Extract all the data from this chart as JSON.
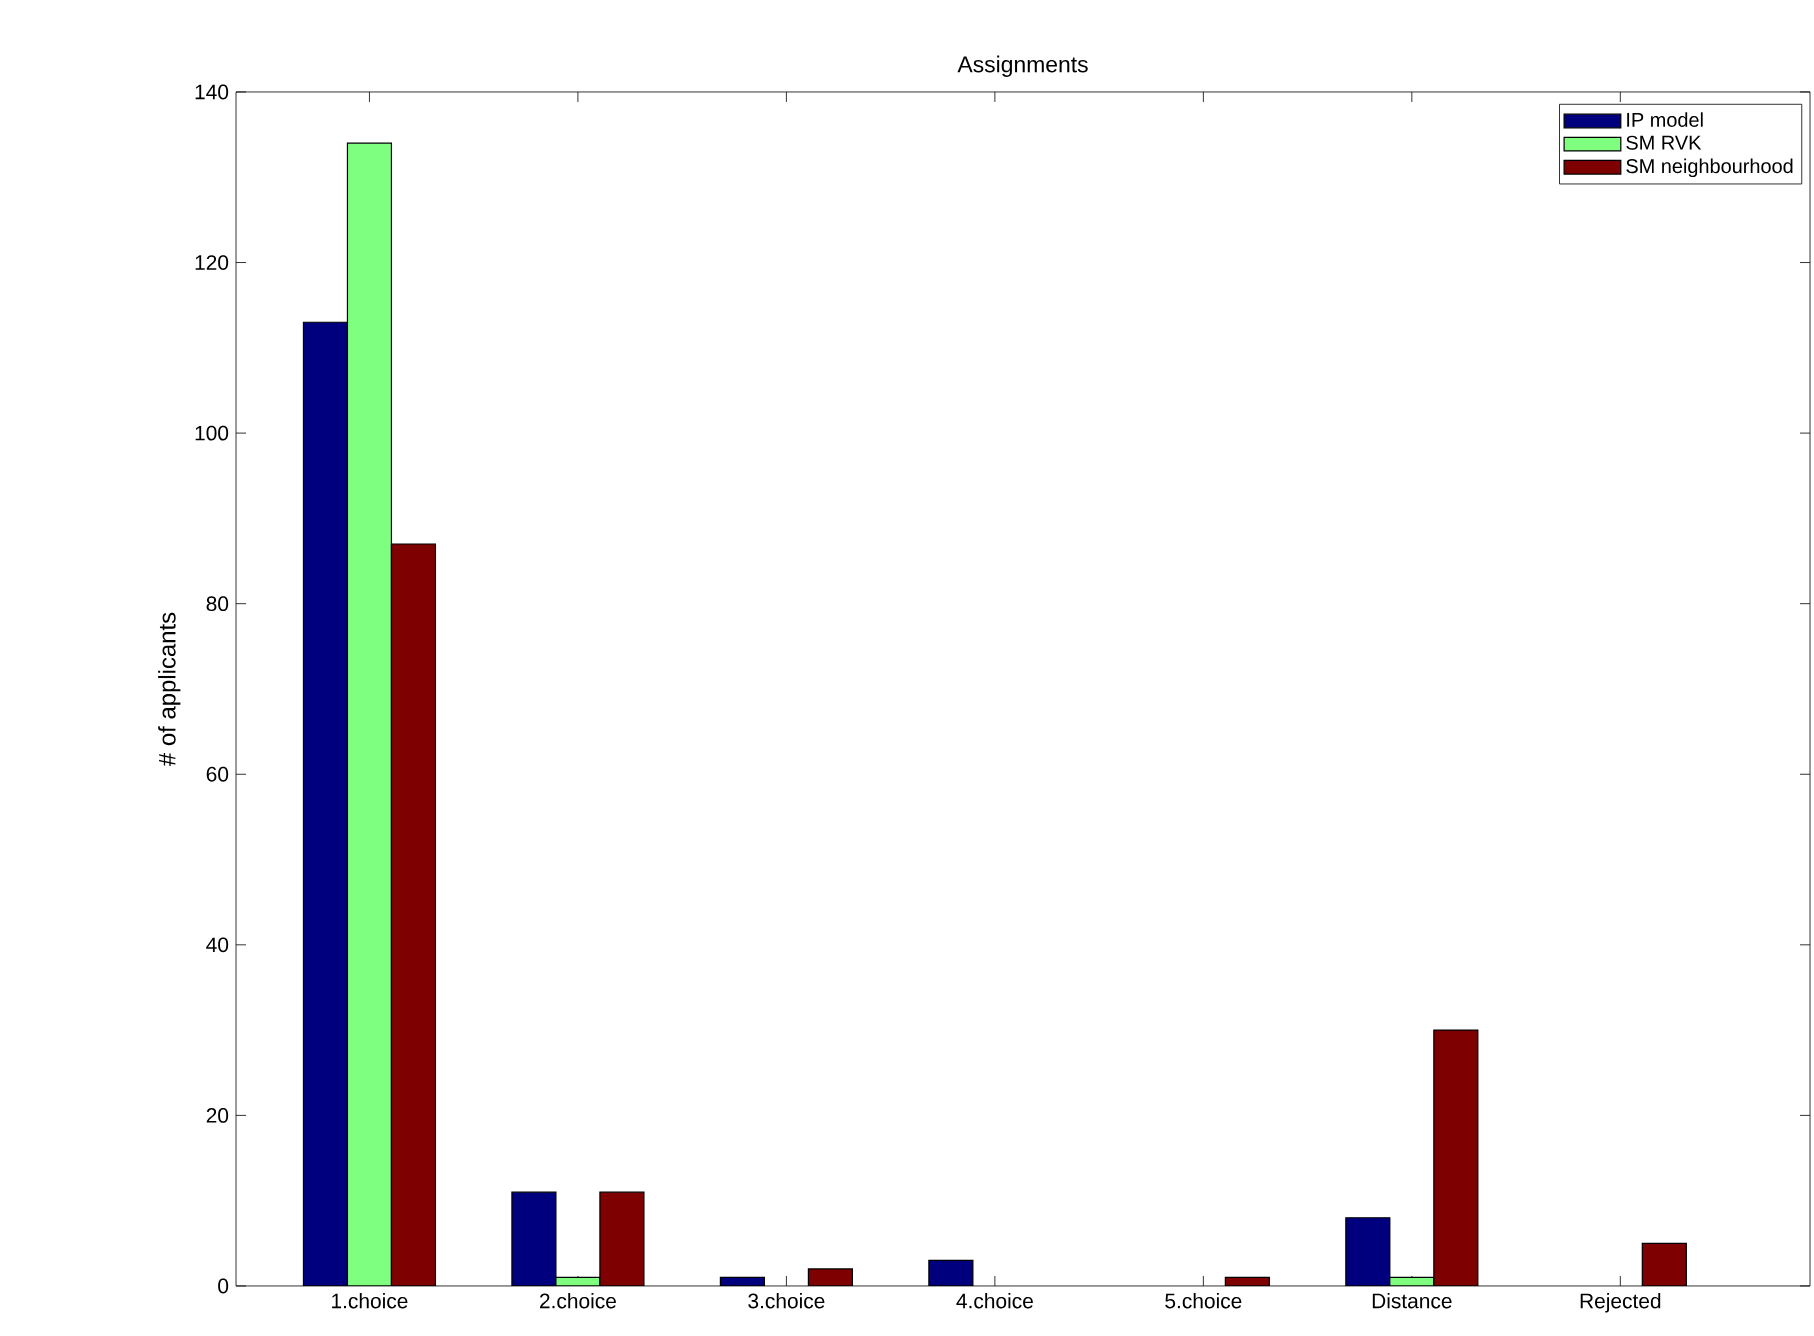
{
  "chart_data": {
    "type": "bar",
    "title": "Assignments",
    "ylabel": "# of applicants",
    "categories": [
      "1.choice",
      "2.choice",
      "3.choice",
      "4.choice",
      "5.choice",
      "Distance",
      "Rejected"
    ],
    "series": [
      {
        "name": "IP model",
        "color": "#00007f",
        "values": [
          113,
          11,
          1,
          3,
          0,
          8,
          0
        ]
      },
      {
        "name": "SM RVK",
        "color": "#7fff7f",
        "values": [
          134,
          1,
          0,
          0,
          0,
          1,
          0
        ]
      },
      {
        "name": "SM neighbourhood",
        "color": "#7f0000",
        "values": [
          87,
          11,
          2,
          0,
          1,
          30,
          5
        ]
      }
    ],
    "ylim": [
      0,
      140
    ],
    "yticks": [
      0,
      20,
      40,
      60,
      80,
      100,
      120,
      140
    ],
    "legend": "top right"
  }
}
